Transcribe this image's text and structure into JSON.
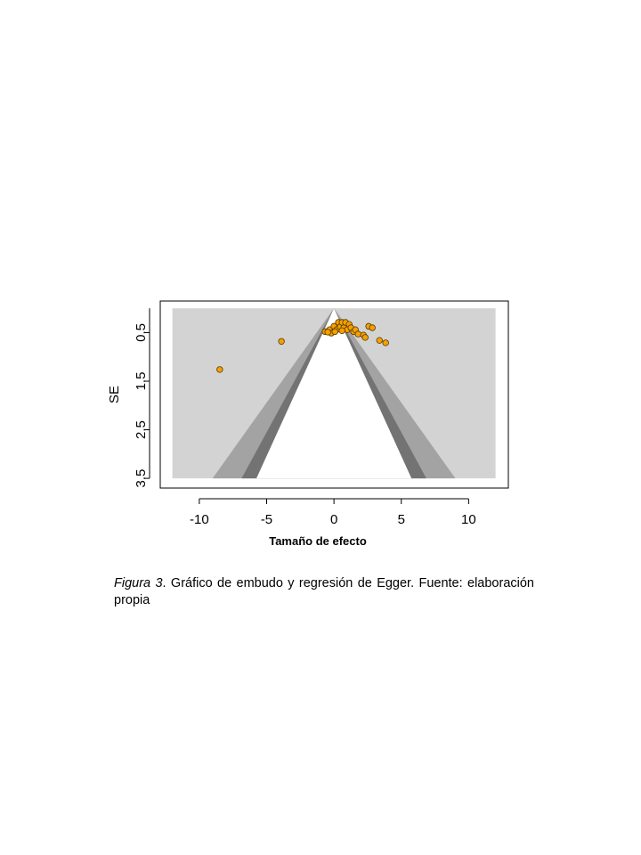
{
  "chart_data": {
    "type": "funnel",
    "xlabel": "Tamaño de efecto",
    "ylabel": "SE",
    "xlim": [
      -12.9,
      12.95
    ],
    "ylim": [
      -0.15,
      3.7
    ],
    "xticks": [
      -10,
      -5,
      0,
      5,
      10
    ],
    "yticks": [
      0.5,
      1.5,
      2.5,
      3.5
    ],
    "funnel": {
      "center": 0,
      "se_max": 3.5,
      "x_range": [
        -12,
        12
      ],
      "background": "#d3d3d3",
      "levels": [
        2.576,
        1.96,
        1.645
      ],
      "colors": [
        "#a3a3a3",
        "#737373",
        "#ffffff"
      ]
    },
    "series": [
      {
        "color": "#f5a000",
        "x": [
          -8.48,
          -3.9,
          -0.66,
          -0.33,
          -0.2,
          0,
          0.2,
          0.33,
          0.46,
          0.6,
          0.73,
          0.86,
          0.99,
          1.13,
          1.26,
          1.46,
          1.59,
          1.79,
          2.19,
          2.32,
          2.58,
          2.85,
          3.38,
          3.84,
          -0.46,
          0.07,
          0.6
        ],
        "y": [
          1.26,
          0.68,
          0.48,
          0.44,
          0.51,
          0.37,
          0.44,
          0.29,
          0.38,
          0.29,
          0.4,
          0.29,
          0.44,
          0.33,
          0.4,
          0.48,
          0.44,
          0.53,
          0.55,
          0.6,
          0.37,
          0.4,
          0.66,
          0.71,
          0.49,
          0.48,
          0.46
        ]
      }
    ]
  },
  "caption": {
    "label": "Figura 3",
    "text": ". Gráfico de embudo y regresión de Egger. Fuente: elaboración propia"
  }
}
